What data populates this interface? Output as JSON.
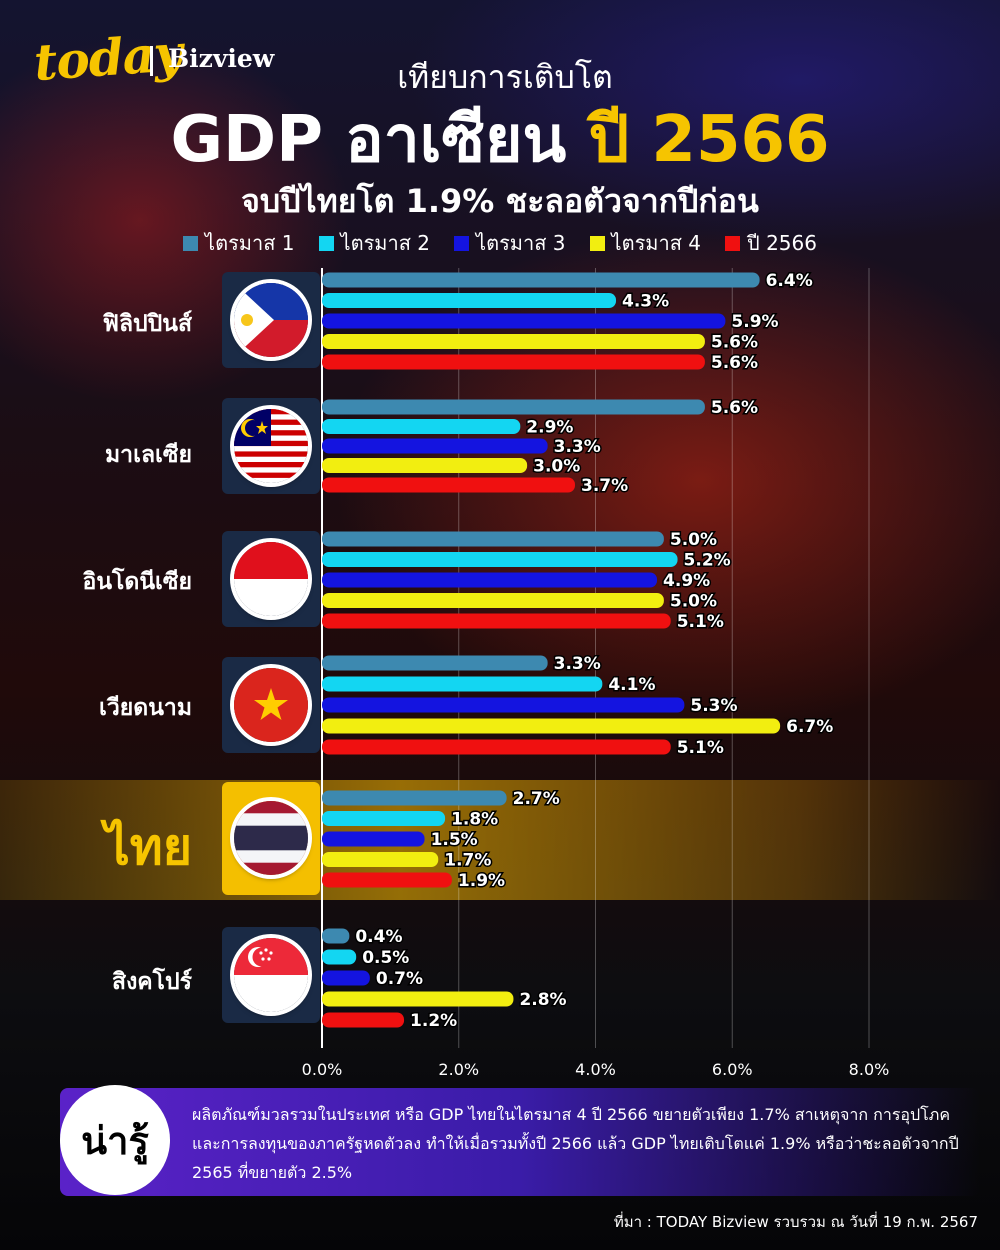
{
  "header": {
    "logo_today": "today",
    "logo_bizview": "Bizview",
    "title_line1": "เทียบการเติบโต",
    "title_gdp": "GDP อาเซียน",
    "title_year": "ปี 2566",
    "subtitle": "จบปีไทยโต 1.9% ชะลอตัวจากปีก่อน"
  },
  "colors": {
    "accent": "#f6c400",
    "q1": "#3d89b0",
    "q2": "#13d6f2",
    "q3": "#1414e0",
    "q4": "#f2ee10",
    "year": "#f01010"
  },
  "chart_data": {
    "type": "bar",
    "orientation": "horizontal",
    "title": "GDP อาเซียน ปี 2566",
    "categories": [
      "ฟิลิปปินส์",
      "มาเลเซีย",
      "อินโดนีเซีย",
      "เวียดนาม",
      "ไทย",
      "สิงคโปร์"
    ],
    "series": [
      {
        "name": "ไตรมาส 1",
        "values": [
          6.4,
          5.6,
          5.0,
          3.3,
          2.7,
          0.4
        ]
      },
      {
        "name": "ไตรมาส 2",
        "values": [
          4.3,
          2.9,
          5.2,
          4.1,
          1.8,
          0.5
        ]
      },
      {
        "name": "ไตรมาส 3",
        "values": [
          5.9,
          3.3,
          4.9,
          5.3,
          1.5,
          0.7
        ]
      },
      {
        "name": "ไตรมาส 4",
        "values": [
          5.6,
          3.0,
          5.0,
          6.7,
          1.7,
          2.8
        ]
      },
      {
        "name": "ปี  2566",
        "values": [
          5.6,
          3.7,
          5.1,
          5.1,
          1.9,
          1.2
        ]
      }
    ],
    "value_labels": [
      [
        "6.4%",
        "4.3%",
        "5.9%",
        "5.6%",
        "5.6%"
      ],
      [
        "5.6%",
        "2.9%",
        "3.3%",
        "3.0%",
        "3.7%"
      ],
      [
        "5.0%",
        "5.2%",
        "4.9%",
        "5.0%",
        "5.1%"
      ],
      [
        "3.3%",
        "4.1%",
        "5.3%",
        "6.7%",
        "5.1%"
      ],
      [
        "2.7%",
        "1.8%",
        "1.5%",
        "1.7%",
        "1.9%"
      ],
      [
        "0.4%",
        "0.5%",
        "0.7%",
        "2.8%",
        "1.2%"
      ]
    ],
    "xlim": [
      0,
      8
    ],
    "x_ticks": [
      "0.0%",
      "2.0%",
      "4.0%",
      "6.0%",
      "8.0%"
    ],
    "grid": true,
    "legend_position": "top"
  },
  "note": {
    "badge": "น่ารู้",
    "text": "ผลิตภัณฑ์มวลรวมในประเทศ หรือ GDP ไทยในไตรมาส 4 ปี 2566 ขยายตัวเพียง 1.7% สาเหตุจาก การอุปโภคและการลงทุนของภาครัฐหดตัวลง ทำให้เมื่อรวมทั้งปี 2566 แล้ว GDP ไทยเติบโตแค่ 1.9% หรือว่าชะลอตัวจากปี 2565 ที่ขยายตัว 2.5%"
  },
  "source": "ที่มา : TODAY Bizview รวบรวม ณ วันที่ 19 ก.พ. 2567"
}
